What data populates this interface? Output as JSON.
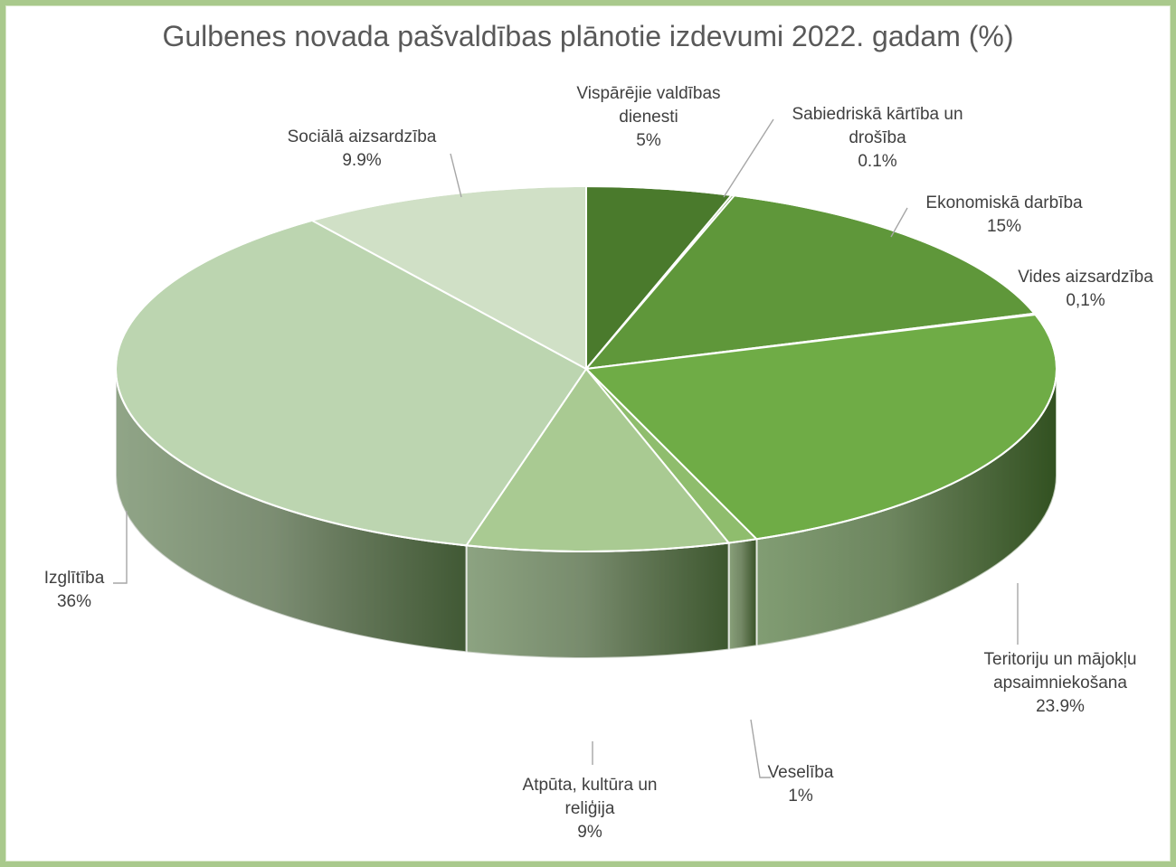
{
  "chart_data": {
    "type": "pie",
    "title": "Gulbenes novada pašvaldības plānotie izdevumi 2022. gadam (%)",
    "slices": [
      {
        "name": "Vispārējie valdības dienesti",
        "value": 5,
        "value_label": "5%",
        "color": "#4a7a2c",
        "label_lines": [
          "Vispārējie valdības",
          "dienesti",
          "5%"
        ]
      },
      {
        "name": "Sabiedriskā kārtība un drošība",
        "value": 0.1,
        "value_label": "0.1%",
        "color": "#5a8e36",
        "label_lines": [
          "Sabiedriskā kārtība un",
          "drošība",
          "0.1%"
        ]
      },
      {
        "name": "Ekonomiskā darbība",
        "value": 15,
        "value_label": "15%",
        "color": "#5f973a",
        "label_lines": [
          "Ekonomiskā darbība",
          "15%"
        ]
      },
      {
        "name": "Vides aizsardzība",
        "value": 0.1,
        "value_label": "0,1%",
        "color": "#65a23e",
        "label_lines": [
          "Vides aizsardzība",
          "0,1%"
        ]
      },
      {
        "name": "Teritoriju un mājokļu apsaimniekošana",
        "value": 23.9,
        "value_label": "23.9%",
        "color": "#6fac46",
        "label_lines": [
          "Teritoriju un mājokļu",
          "apsaimniekošana",
          "23.9%"
        ]
      },
      {
        "name": "Veselība",
        "value": 1,
        "value_label": "1%",
        "color": "#8fbd6d",
        "label_lines": [
          "Veselība",
          "1%"
        ]
      },
      {
        "name": "Atpūta, kultūra un reliģija",
        "value": 9,
        "value_label": "9%",
        "color": "#a9ca92",
        "label_lines": [
          "Atpūta, kultūra un",
          "reliģija",
          "9%"
        ]
      },
      {
        "name": "Izglītība",
        "value": 36,
        "value_label": "36%",
        "color": "#bcd5b0",
        "label_lines": [
          "Izglītība",
          "36%"
        ]
      },
      {
        "name": "Sociālā aizsardzība",
        "value": 9.9,
        "value_label": "9.9%",
        "color": "#d0e0c6",
        "label_lines": [
          "Sociālā aizsardzība",
          "9.9%"
        ]
      }
    ],
    "style": "3d-pie",
    "legend": "none"
  }
}
